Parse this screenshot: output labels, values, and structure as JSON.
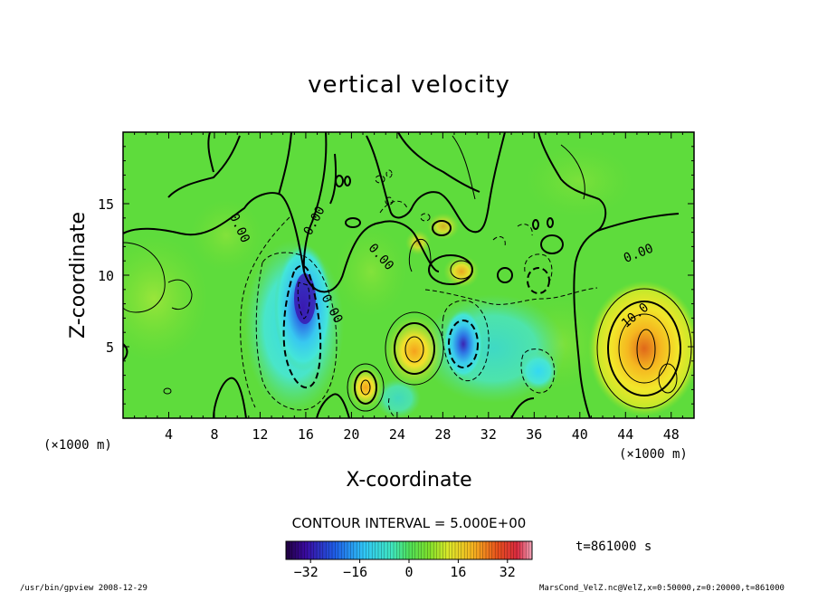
{
  "chart_data": {
    "type": "heatmap",
    "title": "vertical velocity",
    "xlabel": "X-coordinate",
    "ylabel": "Z-coordinate",
    "x_unit": "(×1000 m)",
    "y_unit": "(×1000 m)",
    "xlim": [
      0,
      50
    ],
    "ylim": [
      0,
      20
    ],
    "x_ticks": [
      4,
      8,
      12,
      16,
      20,
      24,
      28,
      32,
      36,
      40,
      44,
      48
    ],
    "y_ticks": [
      5,
      10,
      15
    ],
    "contour_interval_label": "CONTOUR INTERVAL = 5.000E+00",
    "contour_labels": [
      "0.00",
      "0.00",
      "0.00",
      "0.00",
      "0.00",
      "10.0"
    ],
    "time_label": "t=861000 s",
    "colorbar": {
      "min": -40,
      "max": 40,
      "ticks": [
        -32,
        -16,
        0,
        16,
        32
      ]
    },
    "features": [
      {
        "x": 15.6,
        "z": 8.3,
        "value": -30
      },
      {
        "x": 29.8,
        "z": 5.2,
        "value": -18
      },
      {
        "x": 25.3,
        "z": 4.6,
        "value": 18
      },
      {
        "x": 45.8,
        "z": 5.0,
        "value": 24
      },
      {
        "x": 21.2,
        "z": 2.2,
        "value": 14
      },
      {
        "x": 36.2,
        "z": 3.2,
        "value": -10
      },
      {
        "x": 29.5,
        "z": 10.3,
        "value": 12
      }
    ],
    "footer_left": "/usr/bin/gpview   2008-12-29",
    "footer_right": "MarsCond_VelZ.nc@VelZ,x=0:50000,z=0:20000,t=861000"
  }
}
